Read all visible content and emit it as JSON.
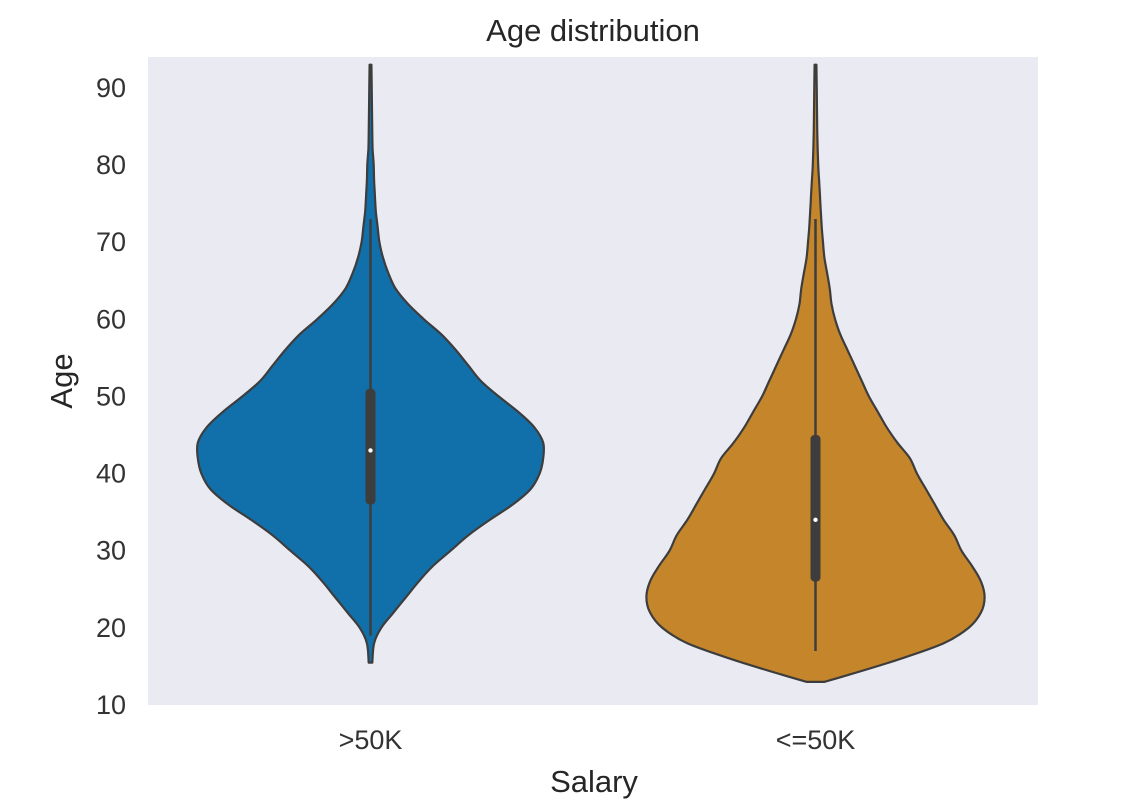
{
  "chart_data": {
    "type": "violin",
    "title": "Age distribution",
    "xlabel": "Salary",
    "ylabel": "Age",
    "ylim": [
      10,
      94
    ],
    "yticks": [
      10,
      20,
      30,
      40,
      50,
      60,
      70,
      80,
      90
    ],
    "grid": false,
    "background": "#eaeaf2",
    "categories": [
      ">50K",
      "<=50K"
    ],
    "series": [
      {
        "category": ">50K",
        "color": "#1170aa",
        "min": 19,
        "q1": 36,
        "median": 43,
        "q3": 51,
        "max": 73,
        "range": [
          15.5,
          93
        ],
        "density": [
          [
            15.5,
            0.01
          ],
          [
            18,
            0.02
          ],
          [
            20,
            0.06
          ],
          [
            22,
            0.13
          ],
          [
            24,
            0.2
          ],
          [
            26,
            0.27
          ],
          [
            28,
            0.35
          ],
          [
            30,
            0.45
          ],
          [
            32,
            0.55
          ],
          [
            34,
            0.67
          ],
          [
            36,
            0.8
          ],
          [
            38,
            0.9
          ],
          [
            40,
            0.95
          ],
          [
            42,
            0.97
          ],
          [
            44,
            0.97
          ],
          [
            46,
            0.92
          ],
          [
            48,
            0.83
          ],
          [
            50,
            0.72
          ],
          [
            52,
            0.62
          ],
          [
            54,
            0.55
          ],
          [
            56,
            0.48
          ],
          [
            58,
            0.4
          ],
          [
            60,
            0.3
          ],
          [
            62,
            0.21
          ],
          [
            64,
            0.14
          ],
          [
            66,
            0.1
          ],
          [
            68,
            0.07
          ],
          [
            70,
            0.05
          ],
          [
            72,
            0.04
          ],
          [
            74,
            0.03
          ],
          [
            76,
            0.025
          ],
          [
            78,
            0.02
          ],
          [
            80,
            0.018
          ],
          [
            82,
            0.012
          ],
          [
            84,
            0.01
          ],
          [
            88,
            0.008
          ],
          [
            93,
            0.005
          ]
        ]
      },
      {
        "category": "<=50K",
        "color": "#c5862b",
        "min": 17,
        "q1": 26,
        "median": 34,
        "q3": 45,
        "max": 73,
        "range": [
          13,
          93
        ],
        "density": [
          [
            13,
            0.05
          ],
          [
            14,
            0.2
          ],
          [
            16,
            0.48
          ],
          [
            18,
            0.72
          ],
          [
            20,
            0.86
          ],
          [
            22,
            0.93
          ],
          [
            24,
            0.95
          ],
          [
            26,
            0.93
          ],
          [
            28,
            0.88
          ],
          [
            30,
            0.82
          ],
          [
            32,
            0.78
          ],
          [
            34,
            0.72
          ],
          [
            36,
            0.67
          ],
          [
            38,
            0.62
          ],
          [
            40,
            0.57
          ],
          [
            42,
            0.53
          ],
          [
            44,
            0.46
          ],
          [
            46,
            0.4
          ],
          [
            48,
            0.35
          ],
          [
            50,
            0.3
          ],
          [
            52,
            0.26
          ],
          [
            54,
            0.22
          ],
          [
            56,
            0.18
          ],
          [
            58,
            0.14
          ],
          [
            60,
            0.11
          ],
          [
            62,
            0.09
          ],
          [
            64,
            0.08
          ],
          [
            66,
            0.065
          ],
          [
            68,
            0.05
          ],
          [
            70,
            0.042
          ],
          [
            72,
            0.035
          ],
          [
            74,
            0.03
          ],
          [
            76,
            0.025
          ],
          [
            78,
            0.02
          ],
          [
            80,
            0.015
          ],
          [
            84,
            0.01
          ],
          [
            88,
            0.008
          ],
          [
            93,
            0.005
          ]
        ]
      }
    ]
  }
}
